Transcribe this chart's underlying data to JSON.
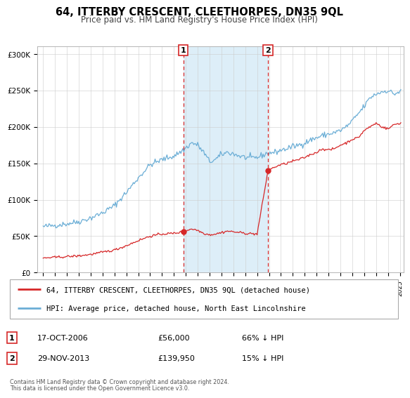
{
  "title": "64, ITTERBY CRESCENT, CLEETHORPES, DN35 9QL",
  "subtitle": "Price paid vs. HM Land Registry's House Price Index (HPI)",
  "hpi_color": "#6baed6",
  "price_color": "#d62728",
  "marker_color": "#d62728",
  "shaded_color": "#ddeef8",
  "background_color": "#ffffff",
  "grid_color": "#cccccc",
  "ylim": [
    0,
    310000
  ],
  "yticks": [
    0,
    50000,
    100000,
    150000,
    200000,
    250000,
    300000
  ],
  "ytick_labels": [
    "£0",
    "£50K",
    "£100K",
    "£150K",
    "£200K",
    "£250K",
    "£300K"
  ],
  "sale1_date": 2006.79,
  "sale1_price": 56000,
  "sale1_label": "17-OCT-2006",
  "sale1_amount": "£56,000",
  "sale1_pct": "66% ↓ HPI",
  "sale2_date": 2013.91,
  "sale2_price": 139950,
  "sale2_label": "29-NOV-2013",
  "sale2_amount": "£139,950",
  "sale2_pct": "15% ↓ HPI",
  "legend_line1": "64, ITTERBY CRESCENT, CLEETHORPES, DN35 9QL (detached house)",
  "legend_line2": "HPI: Average price, detached house, North East Lincolnshire",
  "footer1": "Contains HM Land Registry data © Crown copyright and database right 2024.",
  "footer2": "This data is licensed under the Open Government Licence v3.0."
}
